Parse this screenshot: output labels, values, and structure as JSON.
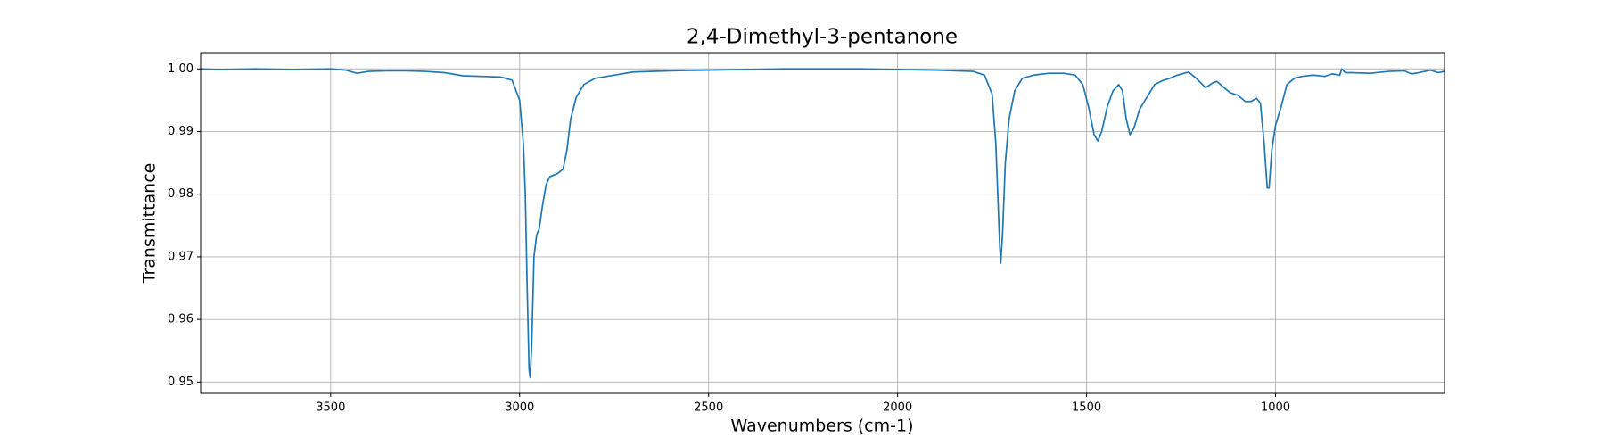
{
  "chart_data": {
    "type": "line",
    "title": "2,4-Dimethyl-3-pentanone",
    "x_label": "Wavenumbers (cm-1)",
    "y_label": "Transmittance",
    "color": "#1f77b4",
    "grid": true,
    "xlim": [
      3844,
      553
    ],
    "ylim": [
      0.9482,
      1.0026
    ],
    "xticks": [
      3500,
      3000,
      2500,
      2000,
      1500,
      1000
    ],
    "yticks": [
      0.95,
      0.96,
      0.97,
      0.98,
      0.99,
      {
        "value": 1,
        "label": "1.00"
      }
    ],
    "x": [
      3844,
      3800,
      3700,
      3600,
      3500,
      3460,
      3430,
      3400,
      3350,
      3300,
      3250,
      3200,
      3150,
      3100,
      3050,
      3020,
      3000,
      2990,
      2985,
      2980,
      2975,
      2972,
      2968,
      2962,
      2955,
      2948,
      2940,
      2930,
      2920,
      2900,
      2885,
      2875,
      2865,
      2850,
      2830,
      2800,
      2750,
      2700,
      2600,
      2500,
      2400,
      2300,
      2200,
      2100,
      2000,
      1900,
      1800,
      1770,
      1750,
      1740,
      1735,
      1730,
      1727,
      1722,
      1715,
      1705,
      1690,
      1670,
      1640,
      1600,
      1560,
      1530,
      1510,
      1495,
      1480,
      1470,
      1460,
      1445,
      1430,
      1415,
      1405,
      1395,
      1385,
      1375,
      1360,
      1340,
      1320,
      1300,
      1280,
      1260,
      1230,
      1210,
      1185,
      1165,
      1155,
      1140,
      1120,
      1100,
      1080,
      1065,
      1050,
      1040,
      1030,
      1022,
      1017,
      1010,
      1000,
      985,
      970,
      950,
      930,
      900,
      870,
      850,
      830,
      825,
      815,
      800,
      750,
      700,
      660,
      640,
      620,
      590,
      570,
      553
    ],
    "values": [
      1.0,
      0.9999,
      1.0,
      0.9999,
      1.0,
      0.9998,
      0.9993,
      0.9996,
      0.9997,
      0.9997,
      0.9996,
      0.9994,
      0.9989,
      0.9988,
      0.9987,
      0.9982,
      0.995,
      0.988,
      0.98,
      0.965,
      0.952,
      0.9507,
      0.956,
      0.97,
      0.9735,
      0.9745,
      0.978,
      0.9815,
      0.9828,
      0.9833,
      0.984,
      0.987,
      0.992,
      0.9955,
      0.9975,
      0.9985,
      0.999,
      0.9995,
      0.9997,
      0.9998,
      0.9999,
      1.0,
      1.0,
      1.0,
      0.9999,
      0.9998,
      0.9996,
      0.999,
      0.996,
      0.988,
      0.98,
      0.972,
      0.969,
      0.974,
      0.985,
      0.992,
      0.9965,
      0.9985,
      0.999,
      0.9993,
      0.9993,
      0.999,
      0.9975,
      0.994,
      0.9895,
      0.9885,
      0.99,
      0.994,
      0.9965,
      0.9975,
      0.9965,
      0.992,
      0.9895,
      0.9905,
      0.9935,
      0.9955,
      0.9975,
      0.9981,
      0.9985,
      0.999,
      0.9995,
      0.9985,
      0.997,
      0.9978,
      0.998,
      0.9972,
      0.9962,
      0.9958,
      0.9948,
      0.9948,
      0.9953,
      0.9945,
      0.988,
      0.981,
      0.981,
      0.987,
      0.991,
      0.994,
      0.9975,
      0.9985,
      0.9988,
      0.999,
      0.9988,
      0.9992,
      0.999,
      1.0,
      0.9994,
      0.9994,
      0.9993,
      0.9996,
      0.9997,
      0.9992,
      0.9994,
      0.9998,
      0.9994,
      0.9996
    ]
  }
}
